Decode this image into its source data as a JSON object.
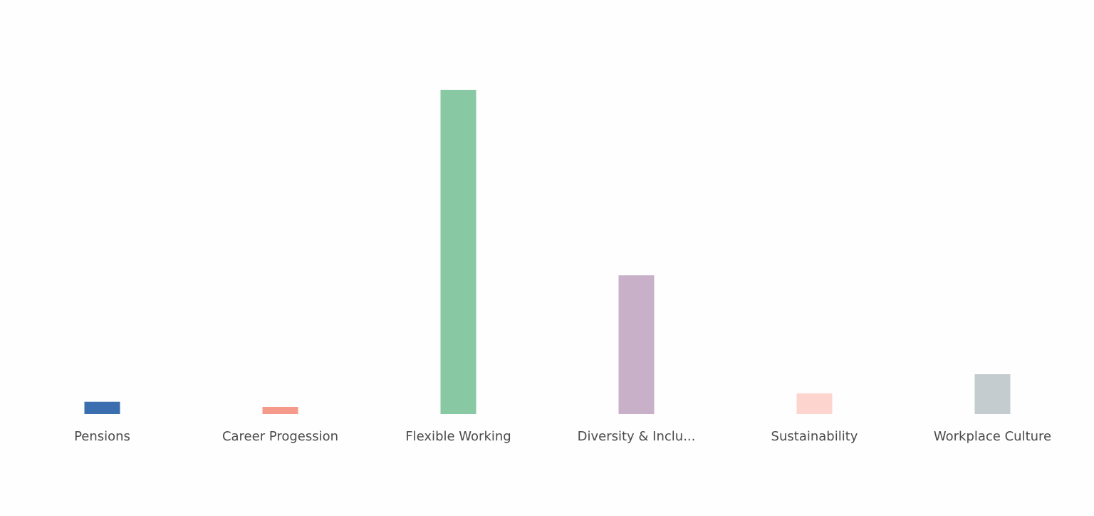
{
  "chart_data": {
    "type": "bar",
    "categories": [
      "Pensions",
      "Career Progession",
      "Flexible Working",
      "Diversity & Inclu...",
      "Sustainability",
      "Workplace Culture"
    ],
    "values": [
      3.8,
      2.2,
      100,
      42.8,
      6.4,
      12.3
    ],
    "colors": [
      "#3a6eae",
      "#f59a8b",
      "#88c8a2",
      "#c8b0c9",
      "#fdd5ce",
      "#c4ccd0"
    ],
    "ylim": [
      0,
      100
    ],
    "grid": false,
    "legend": "none"
  }
}
